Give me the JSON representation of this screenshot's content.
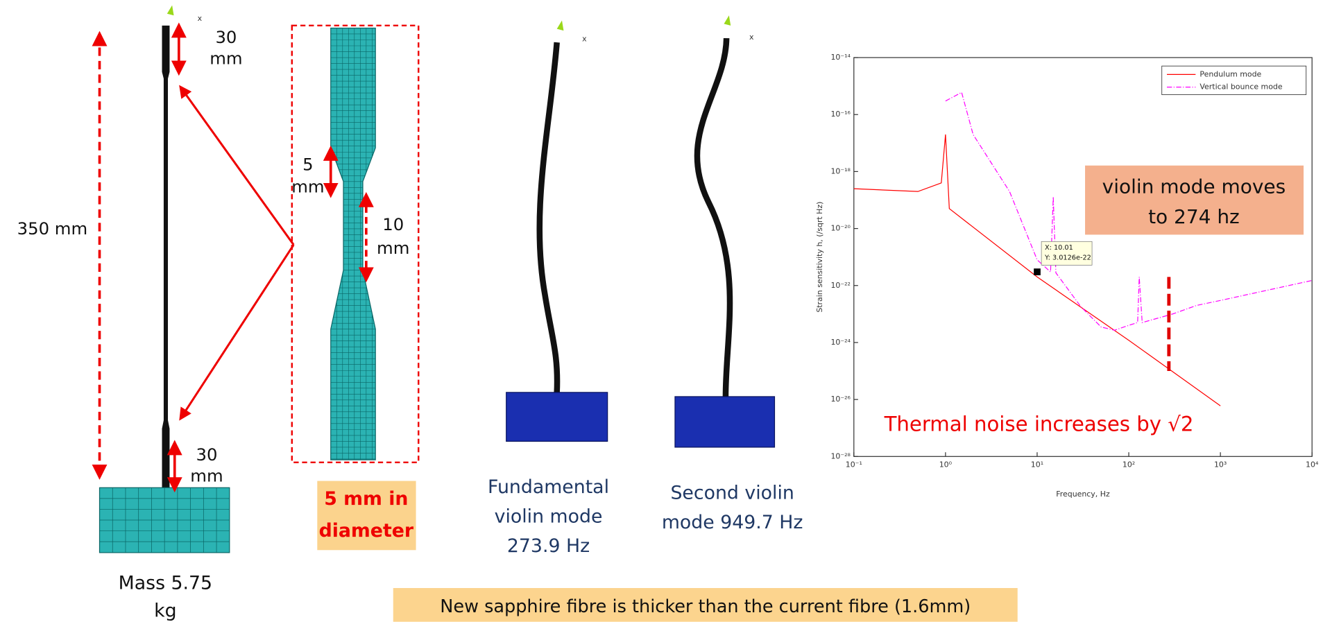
{
  "diagram": {
    "axis_letter": "x",
    "top_neck": [
      "30",
      "mm"
    ],
    "total_length": "350 mm",
    "bottom_neck": [
      "30",
      "mm"
    ],
    "mass_label": [
      "Mass 5.75",
      "kg"
    ],
    "neck_taper": [
      "5",
      "mm"
    ],
    "neck_length": [
      "10",
      "mm"
    ],
    "diameter_box": [
      "5 mm in",
      "diameter"
    ],
    "fundamental_label": [
      "Fundamental",
      "violin mode",
      "273.9 Hz"
    ],
    "second_label": [
      "Second violin",
      "mode 949.7 Hz"
    ],
    "footer": "New sapphire fibre is thicker than the current fibre (1.6mm)"
  },
  "chart_data": {
    "type": "line",
    "x_label": "Frequency, Hz",
    "y_label": "Strain sensitivity h, (/sqrt Hz)",
    "log_x": true,
    "log_y": true,
    "xlim": [
      0.1,
      10000
    ],
    "ylim": [
      1e-28,
      1e-14
    ],
    "xticks": [
      {
        "value": 0.1,
        "label": "10⁻¹"
      },
      {
        "value": 1,
        "label": "10⁰"
      },
      {
        "value": 10,
        "label": "10¹"
      },
      {
        "value": 100,
        "label": "10²"
      },
      {
        "value": 1000,
        "label": "10³"
      },
      {
        "value": 10000,
        "label": "10⁴"
      }
    ],
    "yticks": [
      {
        "value": 1e-14,
        "label": "10⁻¹⁴"
      },
      {
        "value": 1e-16,
        "label": "10⁻¹⁶"
      },
      {
        "value": 1e-18,
        "label": "10⁻¹⁸"
      },
      {
        "value": 1e-20,
        "label": "10⁻²⁰"
      },
      {
        "value": 1e-22,
        "label": "10⁻²²"
      },
      {
        "value": 1e-24,
        "label": "10⁻²⁴"
      },
      {
        "value": 1e-26,
        "label": "10⁻²⁶"
      },
      {
        "value": 1e-28,
        "label": "10⁻²⁸"
      }
    ],
    "legend": "upper right",
    "series": [
      {
        "name": "Pendulum mode",
        "color": "#ff0000",
        "dash": false,
        "x": [
          0.1,
          0.5,
          0.9,
          1,
          1.1,
          10,
          100,
          1000
        ],
        "values": [
          2.5e-19,
          2e-19,
          4e-19,
          2e-17,
          5e-20,
          2e-22,
          1.2e-24,
          6e-27
        ]
      },
      {
        "name": "Vertical bounce mode",
        "color": "#ff00ff",
        "dash": true,
        "x": [
          1,
          1.5,
          2,
          5,
          10,
          14,
          15,
          16,
          30,
          50,
          70,
          100,
          125,
          130,
          140,
          300,
          550,
          1000,
          10000
        ],
        "values": [
          3e-16,
          6e-16,
          2e-17,
          2e-19,
          8e-22,
          3e-22,
          1.3e-19,
          2.8e-22,
          1.8e-23,
          3.5e-24,
          2.7e-24,
          4e-24,
          5e-24,
          2e-22,
          5e-24,
          1e-23,
          2e-23,
          3e-23,
          1.5e-22
        ]
      }
    ],
    "cursor": {
      "x": 10.01,
      "y": 3.0126e-22,
      "lines": [
        "X: 10.01",
        "Y: 3.0126e-22"
      ]
    },
    "violin_marker": {
      "x": 274,
      "y": [
        2e-22,
        1e-25
      ],
      "color": "#e00000"
    },
    "annotation": [
      "violin mode moves",
      "to 274 hz"
    ],
    "thermal_note": "Thermal noise increases by √2"
  }
}
